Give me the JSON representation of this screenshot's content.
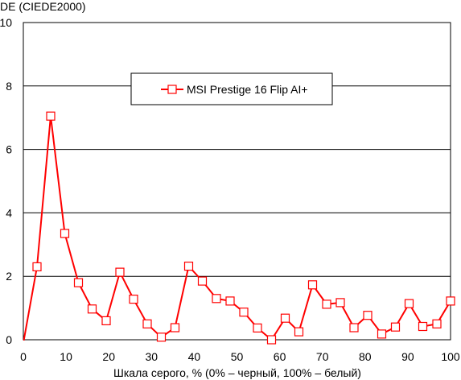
{
  "chart_data": {
    "type": "line",
    "title": "",
    "ylabel": "DE (CIEDE2000)",
    "xlabel": "Шкала серого, % (0% – черный, 100% – белый)",
    "xlim": [
      0,
      100
    ],
    "ylim": [
      0,
      10
    ],
    "xticks": [
      0,
      10,
      20,
      30,
      40,
      50,
      60,
      70,
      80,
      90,
      100
    ],
    "yticks": [
      0,
      2,
      4,
      6,
      8,
      10
    ],
    "grid": "horizontal",
    "legend_position": "top-center",
    "series": [
      {
        "name": "MSI Prestige 16 Flip AI+",
        "color": "#ff0000",
        "marker": "square",
        "x": [
          0,
          3.2,
          6.4,
          9.7,
          12.9,
          16.1,
          19.4,
          22.6,
          25.8,
          29.0,
          32.3,
          35.5,
          38.7,
          41.9,
          45.2,
          48.4,
          51.6,
          54.8,
          58.1,
          61.3,
          64.5,
          67.7,
          71.0,
          74.2,
          77.4,
          80.6,
          83.9,
          87.1,
          90.3,
          93.5,
          96.8,
          100
        ],
        "y": [
          -0.1,
          2.3,
          7.05,
          3.35,
          1.8,
          0.97,
          0.6,
          2.13,
          1.28,
          0.5,
          0.08,
          0.38,
          2.32,
          1.85,
          1.3,
          1.22,
          0.87,
          0.37,
          0.0,
          0.68,
          0.25,
          1.73,
          1.12,
          1.17,
          0.38,
          0.77,
          0.18,
          0.4,
          1.14,
          0.42,
          0.5,
          1.22
        ]
      }
    ]
  }
}
